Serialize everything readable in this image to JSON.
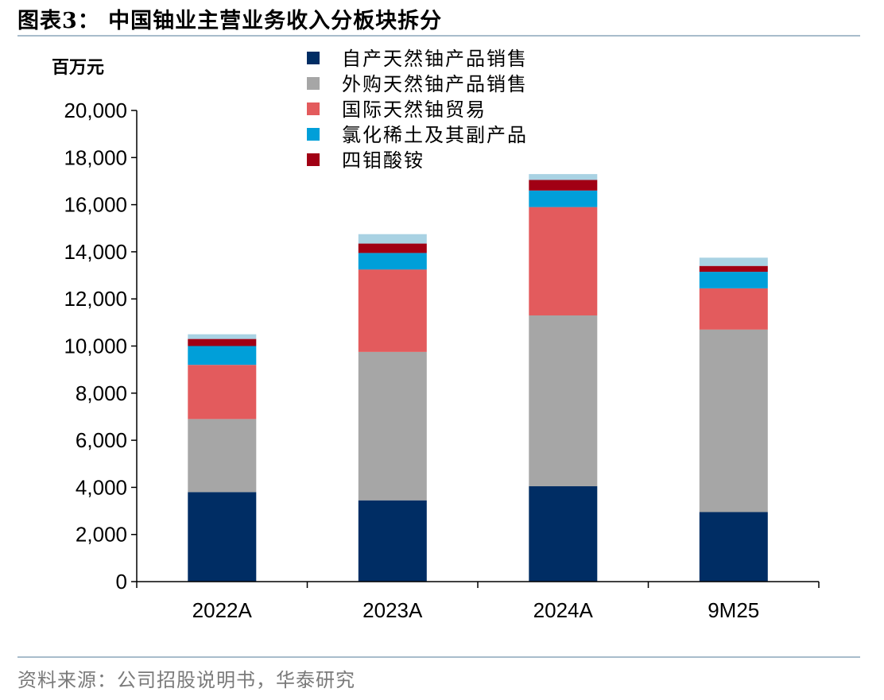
{
  "title": "图表3：  中国铀业主营业务收入分板块拆分",
  "source": "资料来源：公司招股说明书，华泰研究",
  "colors": {
    "rule": "#a8bccb",
    "source_text": "#7a7a7a"
  },
  "chart_data": {
    "type": "bar",
    "stacked": true,
    "unit_label": "百万元",
    "categories": [
      "2022A",
      "2023A",
      "2024A",
      "9M25"
    ],
    "ylim": [
      0,
      20000
    ],
    "yticks": [
      0,
      2000,
      4000,
      6000,
      8000,
      10000,
      12000,
      14000,
      16000,
      18000,
      20000
    ],
    "ytick_labels": [
      "0",
      "2,000",
      "4,000",
      "6,000",
      "8,000",
      "10,000",
      "12,000",
      "14,000",
      "16,000",
      "18,000",
      "20,000"
    ],
    "legend_position": "top-center",
    "grid": false,
    "series": [
      {
        "name": "自产天然铀产品销售",
        "color": "#002d64",
        "values": [
          3800,
          3450,
          4050,
          2950
        ],
        "in_legend": true
      },
      {
        "name": "外购天然铀产品销售",
        "color": "#a6a6a6",
        "values": [
          3100,
          6300,
          7250,
          7750
        ],
        "in_legend": true
      },
      {
        "name": "国际天然铀贸易",
        "color": "#e35b5d",
        "values": [
          2300,
          3500,
          4600,
          1750
        ],
        "in_legend": true
      },
      {
        "name": "氯化稀土及其副产品",
        "color": "#009fd9",
        "values": [
          800,
          700,
          700,
          700
        ],
        "in_legend": true
      },
      {
        "name": "四钼酸铵",
        "color": "#a10014",
        "values": [
          300,
          400,
          450,
          250
        ],
        "in_legend": true
      },
      {
        "name": "",
        "color": "#a9d2e3",
        "values": [
          200,
          400,
          250,
          350
        ],
        "in_legend": false
      }
    ]
  }
}
